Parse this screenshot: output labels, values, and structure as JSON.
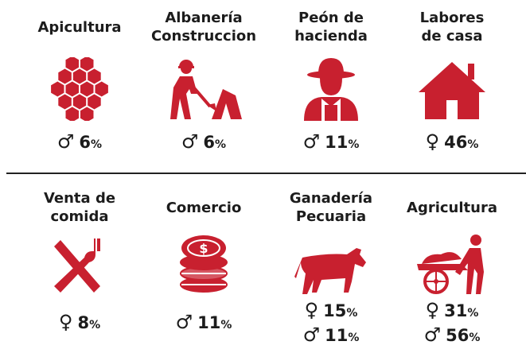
{
  "rows": [
    [
      {
        "label": [
          "Apicultura"
        ],
        "stats": [
          {
            "symbol": "♂",
            "value": 6,
            "unit": "%"
          }
        ]
      },
      {
        "label": [
          "Albanería",
          "Construccion"
        ],
        "stats": [
          {
            "symbol": "♂",
            "value": 6,
            "unit": "%"
          }
        ]
      },
      {
        "label": [
          "Peón de",
          "hacienda"
        ],
        "stats": [
          {
            "symbol": "♂",
            "value": 11,
            "unit": "%"
          }
        ]
      },
      {
        "label": [
          "Labores",
          "de casa"
        ],
        "stats": [
          {
            "symbol": "♀",
            "value": 46,
            "unit": "%"
          }
        ]
      }
    ],
    [
      {
        "label": [
          "Venta de",
          "comida"
        ],
        "stats": [
          {
            "symbol": "♀",
            "value": 8,
            "unit": "%"
          }
        ]
      },
      {
        "label": [
          "Comercio"
        ],
        "stats": [
          {
            "symbol": "♂",
            "value": 11,
            "unit": "%"
          }
        ]
      },
      {
        "label": [
          "Ganadería",
          "Pecuaria"
        ],
        "stats": [
          {
            "symbol": "♀",
            "value": 15,
            "unit": "%"
          },
          {
            "symbol": "♂",
            "value": 11,
            "unit": "%"
          }
        ]
      },
      {
        "label": [
          "Agricultura"
        ],
        "stats": [
          {
            "symbol": "♀",
            "value": 31,
            "unit": "%"
          },
          {
            "symbol": "♂",
            "value": 56,
            "unit": "%"
          }
        ]
      }
    ]
  ]
}
